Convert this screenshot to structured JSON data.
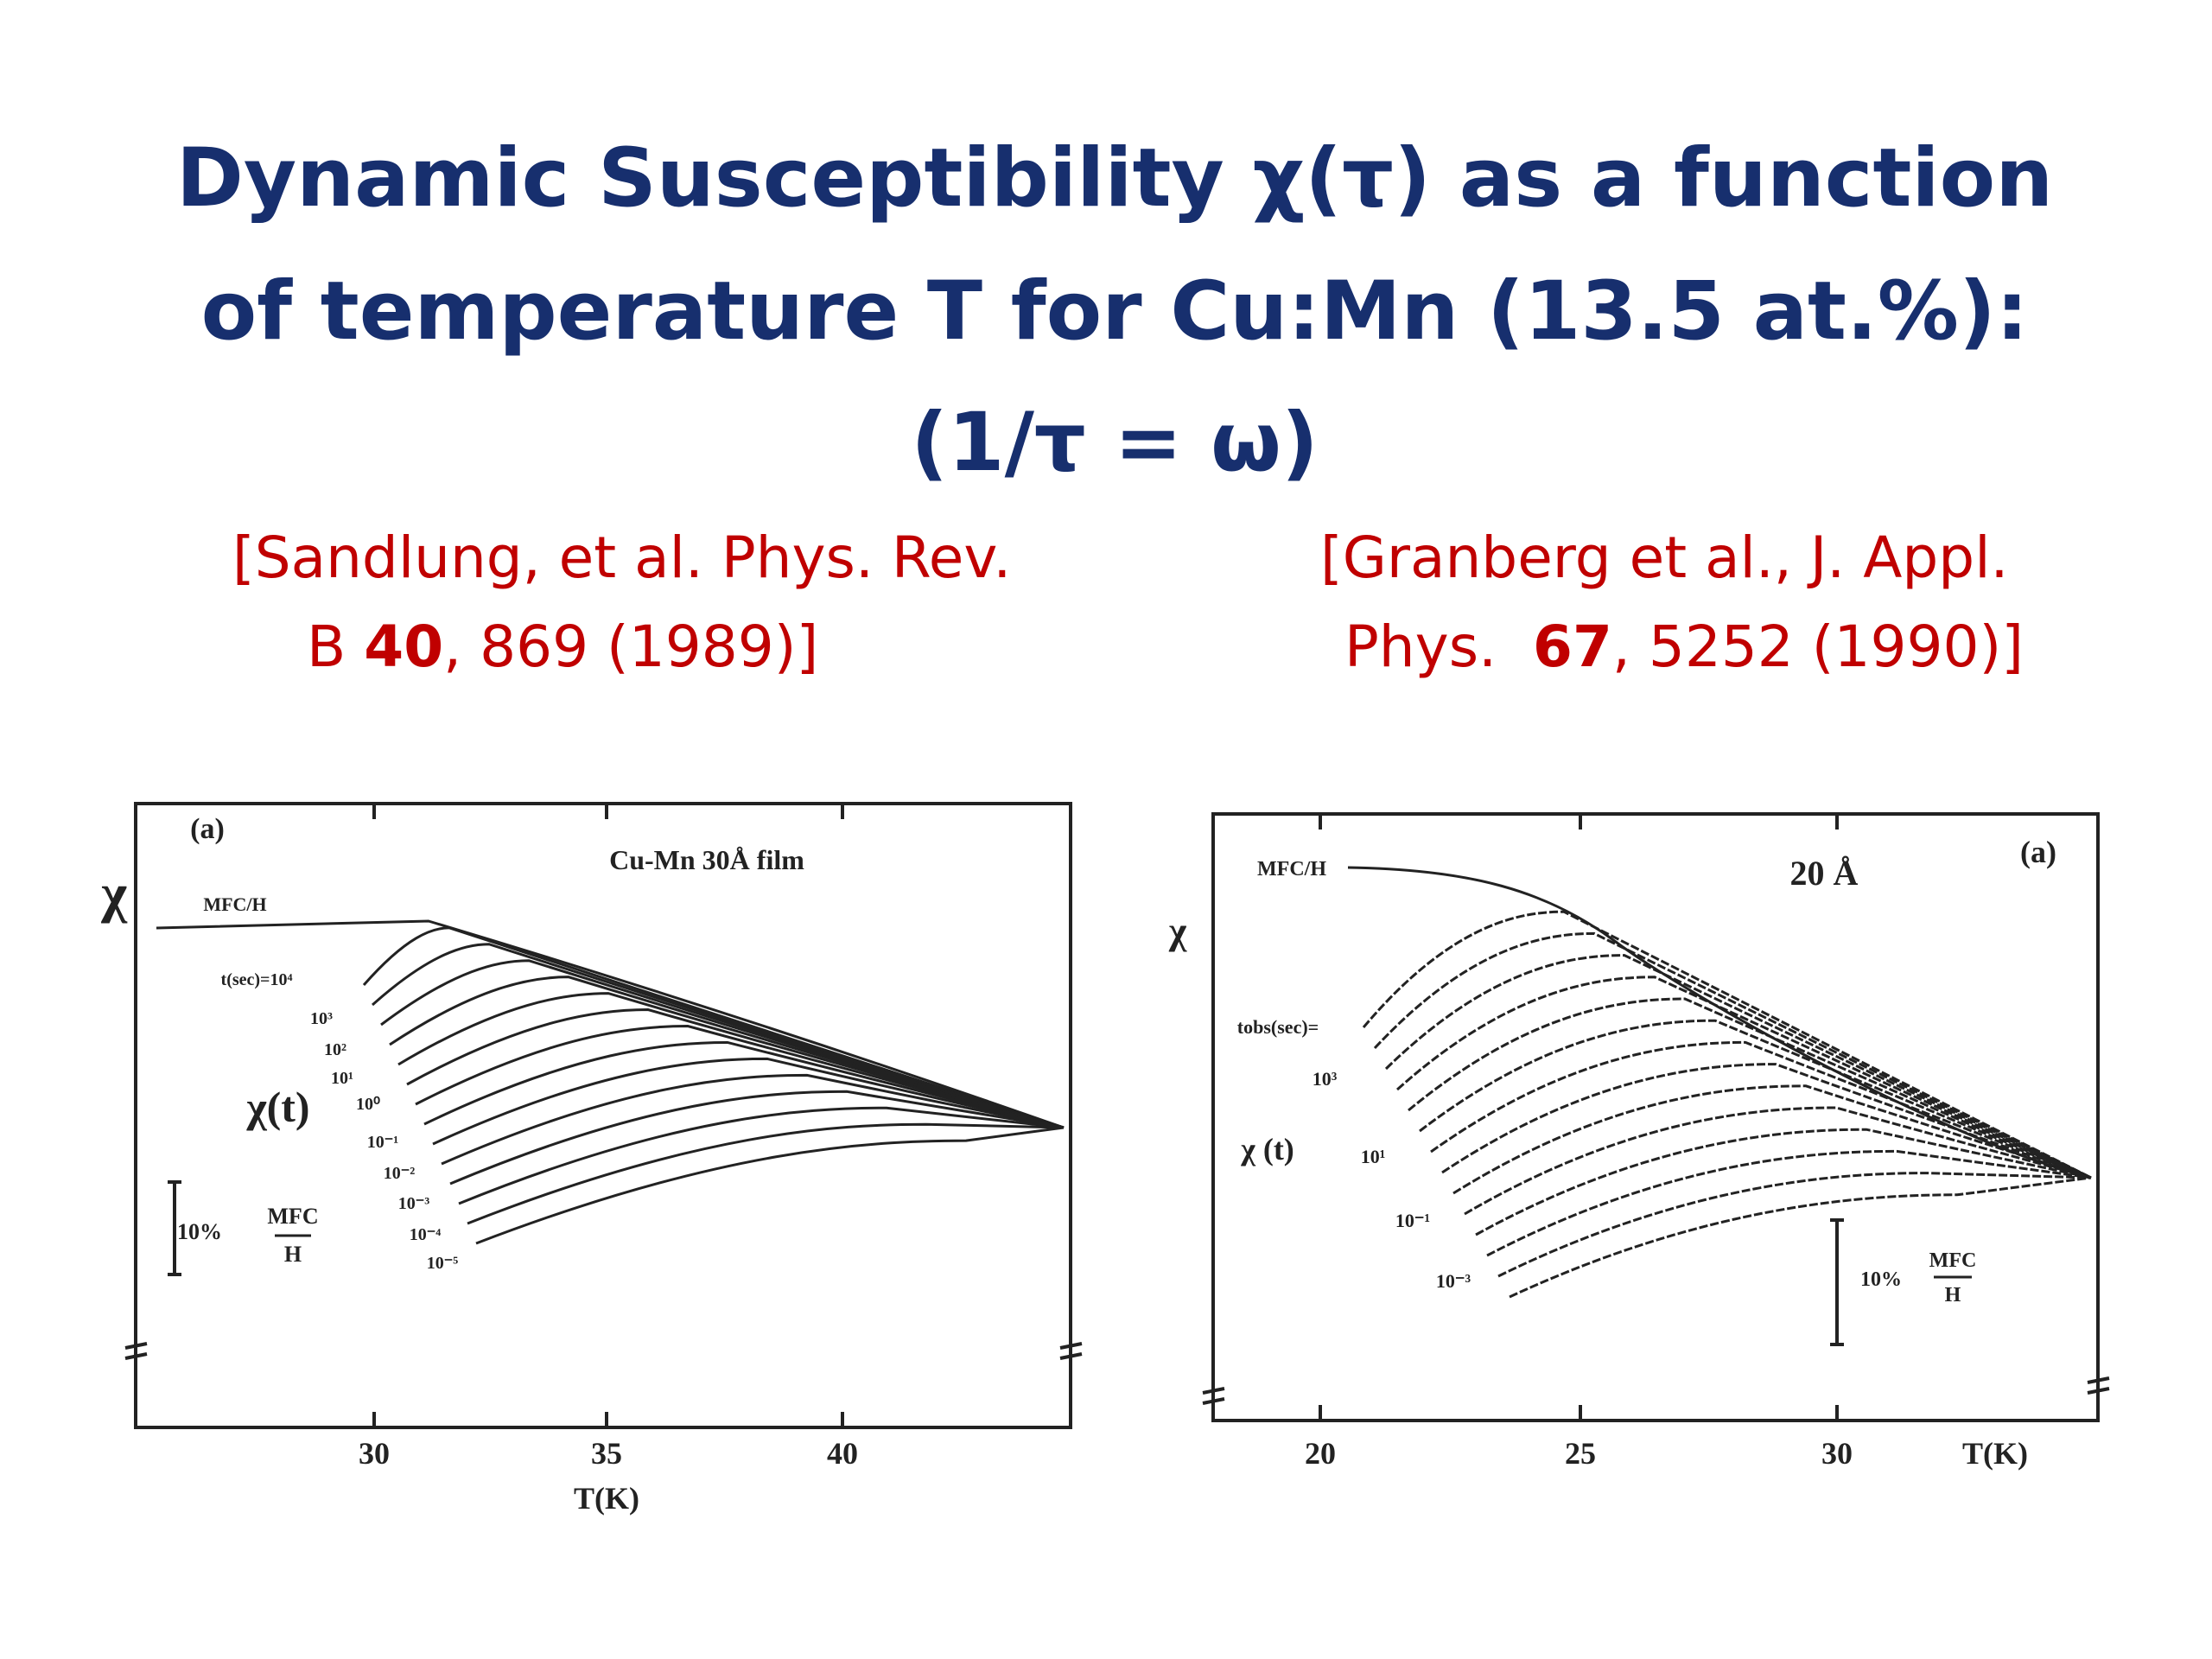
{
  "title": {
    "lines": [
      "Dynamic Susceptibility χ(τ) as a function",
      "of temperature T for Cu:Mn (13.5 at.%):",
      "(1/τ = ω)"
    ]
  },
  "references": [
    {
      "line1": "[Sandlung, et al. Phys. Rev.",
      "line2": {
        "before": "B ",
        "bold": "40",
        "after": ", 869 (1989)]"
      }
    },
    {
      "line1": "[Granberg et al., J. Appl.",
      "line2": {
        "before": "Phys.  ",
        "bold": "67",
        "after": ", 5252 (1990)]"
      }
    }
  ],
  "figures": [
    {
      "panel": "(a)",
      "caption": "Cu-Mn 30Å film",
      "y_label": "χ",
      "envelope_label": "MFC/H",
      "curve_label": "χ(t)",
      "time_labels": [
        "t(sec)=10⁴",
        "10³",
        "10²",
        "10¹",
        "10⁰",
        "10⁻¹",
        "10⁻²",
        "10⁻³",
        "10⁻⁴",
        "10⁻⁵"
      ],
      "scale_bar": {
        "percent": "10%",
        "numerator": "MFC",
        "denominator": "H"
      },
      "x_ticks": [
        "30",
        "35",
        "40"
      ],
      "x_label": "T(K)"
    },
    {
      "panel": "(a)",
      "caption": "20 Å",
      "y_label": "χ",
      "envelope_label": "MFC/H",
      "curve_label": "χ (t)",
      "time_labels": [
        "tobs(sec)=",
        "10³",
        "10¹",
        "10⁻¹",
        "10⁻³"
      ],
      "scale_bar": {
        "percent": "10%",
        "numerator": "MFC",
        "denominator": "H"
      },
      "x_ticks": [
        "20",
        "25",
        "30"
      ],
      "x_label": "T(K)"
    }
  ]
}
